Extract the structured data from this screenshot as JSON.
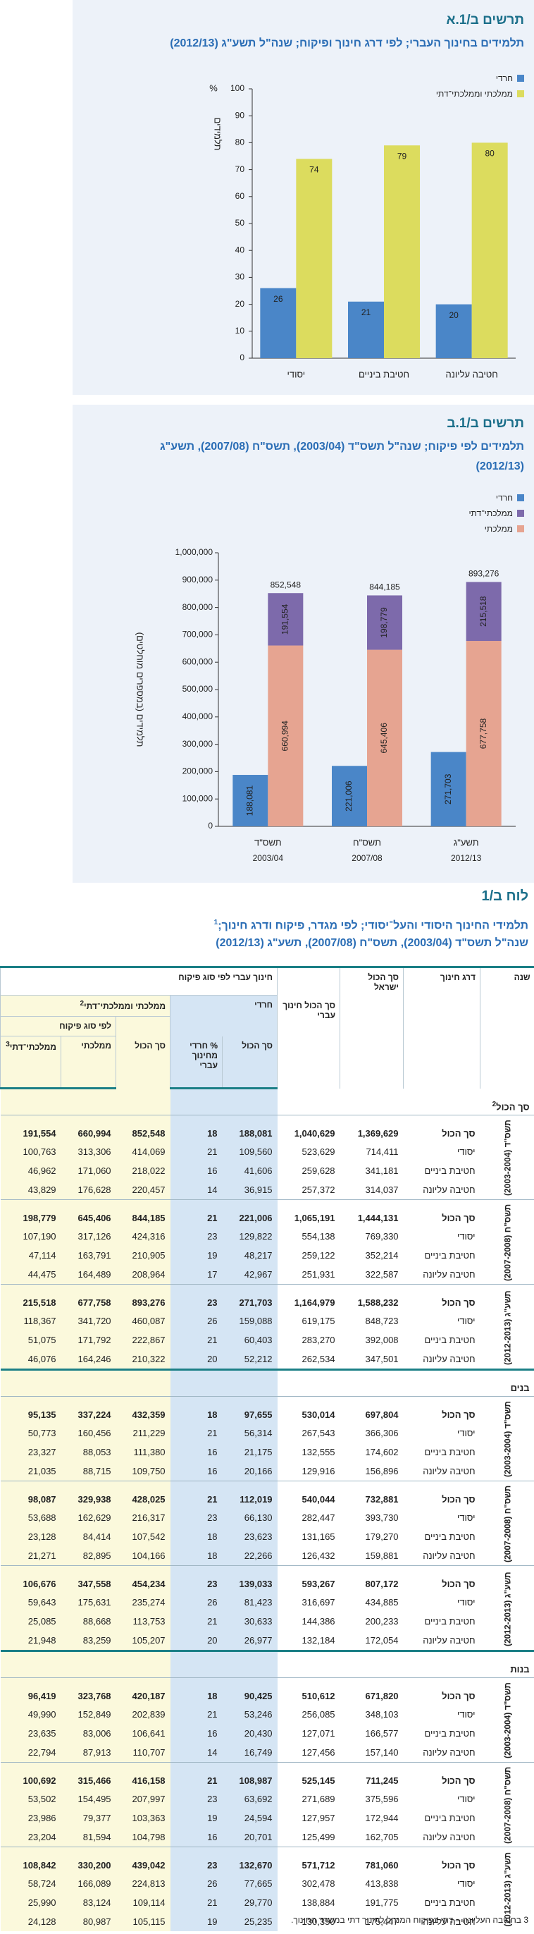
{
  "chart_data": [
    {
      "type": "bar",
      "title": "תרשים ב/1.א",
      "subtitle": "תלמידים בחינוך העברי; לפי דרג חינוך ופיקוח; שנה\"ל תשע\"ג (2012/13)",
      "y_label": "תלמידים",
      "y_unit": "%",
      "categories": [
        "יסודי",
        "חטיבת ביניים",
        "חטיבה עליונה"
      ],
      "series": [
        {
          "name": "חרדי",
          "color": "#4a86c8",
          "values": [
            26,
            21,
            20
          ]
        },
        {
          "name": "ממלכתי וממלכתי־דתי",
          "color": "#dcdc5e",
          "values": [
            74,
            79,
            80
          ]
        }
      ],
      "ylim": [
        0,
        100
      ],
      "yticks": [
        0,
        10,
        20,
        30,
        40,
        50,
        60,
        70,
        80,
        90,
        100
      ],
      "grid": false,
      "legend": "top-right"
    },
    {
      "type": "bar",
      "title": "תרשים ב/1.ב",
      "subtitle": "תלמידים לפי פיקוח; שנה\"ל תשס\"ד (2003/04), תשס\"ח (2007/08), תשע\"ג (2012/13)",
      "y_label": "תלמידים (במספרים מוחלטים)",
      "categories": [
        "תשס\"ד",
        "תשס\"ח",
        "תשע\"ג"
      ],
      "category_years": [
        "2003/04",
        "2007/08",
        "2012/13"
      ],
      "series": [
        {
          "name": "חרדי",
          "color": "#4a86c8",
          "stacked": false,
          "values": [
            188081,
            221006,
            271703
          ],
          "value_labels": [
            "188,081",
            "221,006",
            "271,703"
          ]
        },
        {
          "name": "ממלכתי־דתי",
          "color": "#7d6aab",
          "stacked": true,
          "values": [
            191554,
            198779,
            215518
          ],
          "value_labels": [
            "191,554",
            "198,779",
            "215,518"
          ]
        },
        {
          "name": "ממלכתי",
          "color": "#e6a491",
          "stacked": true,
          "values": [
            660994,
            645406,
            677758
          ],
          "value_labels": [
            "660,994",
            "645,406",
            "677,758"
          ]
        }
      ],
      "totals": [
        852548,
        844185,
        893276
      ],
      "total_labels": [
        "852,548",
        "844,185",
        "893,276"
      ],
      "ylim": [
        0,
        1000000
      ],
      "yticks": [
        0,
        {
          "value": 100000,
          "label": "100,000"
        },
        {
          "value": 200000,
          "label": "200,000"
        },
        {
          "value": 300000,
          "label": "300,000"
        },
        {
          "value": 400000,
          "label": "400,000"
        },
        {
          "value": 500000,
          "label": "500,000"
        },
        {
          "value": 600000,
          "label": "600,000"
        },
        {
          "value": 700000,
          "label": "700,000"
        },
        {
          "value": 800000,
          "label": "800,000"
        },
        {
          "value": 900000,
          "label": "900,000"
        },
        {
          "value": 1000000,
          "label": "1,000,000"
        }
      ],
      "grid": false,
      "legend": "top-right"
    }
  ],
  "table": {
    "label": "לוח ב/1",
    "title_line1": "תלמידי החינוך היסודי והעל־יסודי; לפי מגדר, פיקוח ודרג חינוך;",
    "title_sup": "1",
    "title_line2": "שנה\"ל תשס\"ד (2003/04), תשס\"ח (2007/08), תשע\"ג (2012/13)",
    "headers": {
      "year": "שנה",
      "level": "דרג חינוך",
      "israel_total": "סך הכול ישראל",
      "hebrew_total": "סך הכול חינוך עברי",
      "by_supervision": "חינוך עברי לפי סוג פיקוח",
      "haredi": "חרדי",
      "haredi_total": "סך הכול",
      "haredi_pct": "% חרדי מחינוך עברי",
      "mm": "ממלכתי וממלכתי־דתי",
      "mm_sup": "2",
      "mm_total": "סך הכול",
      "by_type": "לפי סוג פיקוח",
      "mamlachti": "ממלכתי",
      "dati": "ממלכתי־דתי",
      "dati_sup": "3"
    },
    "sections": [
      {
        "name": "סך הכול",
        "sup": "2",
        "years": [
          {
            "name": "תשס\"ד",
            "range": "(2003-2004)",
            "rows": [
              [
                "סך הכול",
                "1,369,629",
                "1,040,629",
                "188,081",
                "18",
                "852,548",
                "660,994",
                "191,554"
              ],
              [
                "יסודי",
                "714,411",
                "523,629",
                "109,560",
                "21",
                "414,069",
                "313,306",
                "100,763"
              ],
              [
                "חטיבת ביניים",
                "341,181",
                "259,628",
                "41,606",
                "16",
                "218,022",
                "171,060",
                "46,962"
              ],
              [
                "חטיבה עליונה",
                "314,037",
                "257,372",
                "36,915",
                "14",
                "220,457",
                "176,628",
                "43,829"
              ]
            ]
          },
          {
            "name": "תשס\"ח",
            "range": "(2007-2008)",
            "rows": [
              [
                "סך הכול",
                "1,444,131",
                "1,065,191",
                "221,006",
                "21",
                "844,185",
                "645,406",
                "198,779"
              ],
              [
                "יסודי",
                "769,330",
                "554,138",
                "129,822",
                "23",
                "424,316",
                "317,126",
                "107,190"
              ],
              [
                "חטיבת ביניים",
                "352,214",
                "259,122",
                "48,217",
                "19",
                "210,905",
                "163,791",
                "47,114"
              ],
              [
                "חטיבה עליונה",
                "322,587",
                "251,931",
                "42,967",
                "17",
                "208,964",
                "164,489",
                "44,475"
              ]
            ]
          },
          {
            "name": "תשע\"ג",
            "range": "(2012-2013)",
            "rows": [
              [
                "סך הכול",
                "1,588,232",
                "1,164,979",
                "271,703",
                "23",
                "893,276",
                "677,758",
                "215,518"
              ],
              [
                "יסודי",
                "848,723",
                "619,175",
                "159,088",
                "26",
                "460,087",
                "341,720",
                "118,367"
              ],
              [
                "חטיבת ביניים",
                "392,008",
                "283,270",
                "60,403",
                "21",
                "222,867",
                "171,792",
                "51,075"
              ],
              [
                "חטיבה עליונה",
                "347,501",
                "262,534",
                "52,212",
                "20",
                "210,322",
                "164,246",
                "46,076"
              ]
            ]
          }
        ]
      },
      {
        "name": "בנים",
        "years": [
          {
            "name": "תשס\"ד",
            "range": "(2003-2004)",
            "rows": [
              [
                "סך הכול",
                "697,804",
                "530,014",
                "97,655",
                "18",
                "432,359",
                "337,224",
                "95,135"
              ],
              [
                "יסודי",
                "366,306",
                "267,543",
                "56,314",
                "21",
                "211,229",
                "160,456",
                "50,773"
              ],
              [
                "חטיבת ביניים",
                "174,602",
                "132,555",
                "21,175",
                "16",
                "111,380",
                "88,053",
                "23,327"
              ],
              [
                "חטיבה עליונה",
                "156,896",
                "129,916",
                "20,166",
                "16",
                "109,750",
                "88,715",
                "21,035"
              ]
            ]
          },
          {
            "name": "תשס\"ח",
            "range": "(2007-2008)",
            "rows": [
              [
                "סך הכול",
                "732,881",
                "540,044",
                "112,019",
                "21",
                "428,025",
                "329,938",
                "98,087"
              ],
              [
                "יסודי",
                "393,730",
                "282,447",
                "66,130",
                "23",
                "216,317",
                "162,629",
                "53,688"
              ],
              [
                "חטיבת ביניים",
                "179,270",
                "131,165",
                "23,623",
                "18",
                "107,542",
                "84,414",
                "23,128"
              ],
              [
                "חטיבה עליונה",
                "159,881",
                "126,432",
                "22,266",
                "18",
                "104,166",
                "82,895",
                "21,271"
              ]
            ]
          },
          {
            "name": "תשע\"ג",
            "range": "(2012-2013)",
            "rows": [
              [
                "סך הכול",
                "807,172",
                "593,267",
                "139,033",
                "23",
                "454,234",
                "347,558",
                "106,676"
              ],
              [
                "יסודי",
                "434,885",
                "316,697",
                "81,423",
                "26",
                "235,274",
                "175,631",
                "59,643"
              ],
              [
                "חטיבת ביניים",
                "200,233",
                "144,386",
                "30,633",
                "21",
                "113,753",
                "88,668",
                "25,085"
              ],
              [
                "חטיבה עליונה",
                "172,054",
                "132,184",
                "26,977",
                "20",
                "105,207",
                "83,259",
                "21,948"
              ]
            ]
          }
        ]
      },
      {
        "name": "בנות",
        "years": [
          {
            "name": "תשס\"ד",
            "range": "(2003-2004)",
            "rows": [
              [
                "סך הכול",
                "671,820",
                "510,612",
                "90,425",
                "18",
                "420,187",
                "323,768",
                "96,419"
              ],
              [
                "יסודי",
                "348,103",
                "256,085",
                "53,246",
                "21",
                "202,839",
                "152,849",
                "49,990"
              ],
              [
                "חטיבת ביניים",
                "166,577",
                "127,071",
                "20,430",
                "16",
                "106,641",
                "83,006",
                "23,635"
              ],
              [
                "חטיבה עליונה",
                "157,140",
                "127,456",
                "16,749",
                "14",
                "110,707",
                "87,913",
                "22,794"
              ]
            ]
          },
          {
            "name": "תשס\"ח",
            "range": "(2007-2008)",
            "rows": [
              [
                "סך הכול",
                "711,245",
                "525,145",
                "108,987",
                "21",
                "416,158",
                "315,466",
                "100,692"
              ],
              [
                "יסודי",
                "375,596",
                "271,689",
                "63,692",
                "23",
                "207,997",
                "154,495",
                "53,502"
              ],
              [
                "חטיבת ביניים",
                "172,944",
                "127,957",
                "24,594",
                "19",
                "103,363",
                "79,377",
                "23,986"
              ],
              [
                "חטיבה עליונה",
                "162,705",
                "125,499",
                "20,701",
                "16",
                "104,798",
                "81,594",
                "23,204"
              ]
            ]
          },
          {
            "name": "תשע\"ג",
            "range": "(2012-2013)",
            "rows": [
              [
                "סך הכול",
                "781,060",
                "571,712",
                "132,670",
                "23",
                "439,042",
                "330,200",
                "108,842"
              ],
              [
                "יסודי",
                "413,838",
                "302,478",
                "77,665",
                "26",
                "224,813",
                "166,089",
                "58,724"
              ],
              [
                "חטיבת ביניים",
                "191,775",
                "138,884",
                "29,770",
                "21",
                "109,114",
                "83,124",
                "25,990"
              ],
              [
                "חטיבה עליונה",
                "175,447",
                "130,350",
                "25,235",
                "19",
                "105,115",
                "80,987",
                "24,128"
              ]
            ]
          }
        ]
      }
    ],
    "footnote_mark": "3",
    "footnote": "בחטיבה העליונה – דתי בפיקוח המנהל לחינוך דתי במשרד החינוך."
  }
}
